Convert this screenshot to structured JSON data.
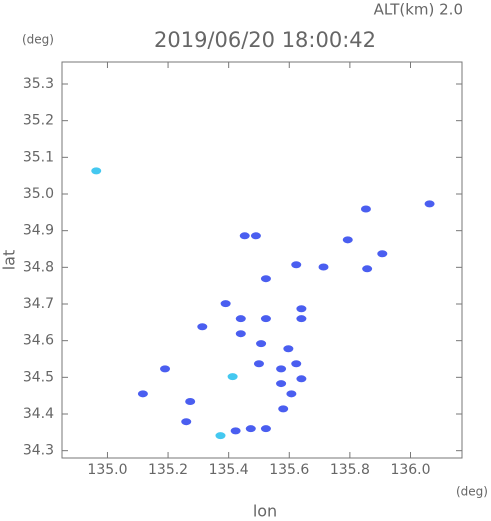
{
  "chart_data": {
    "type": "scatter",
    "title": "2019/06/20 18:00:42",
    "subtitle": "ALT(km) 2.0",
    "y_unit": "(deg)",
    "x_unit": "(deg)",
    "x_label": "lon",
    "y_label": "lat",
    "xlim": [
      134.85,
      136.17
    ],
    "ylim": [
      34.28,
      35.36
    ],
    "xticks": [
      {
        "value": 135.0,
        "label": "135.0"
      },
      135.2,
      135.4,
      135.6,
      135.8,
      {
        "value": 136.0,
        "label": "136.0"
      }
    ],
    "yticks": [
      {
        "value": 34.3,
        "label": "34.3"
      },
      34.4,
      34.5,
      34.6,
      34.7,
      34.8,
      34.9,
      {
        "value": 35.0,
        "label": "35.0"
      },
      35.1,
      35.2,
      35.3
    ],
    "series": [
      {
        "color": "#4a5ef0",
        "x": [
          135.49,
          135.453,
          135.793,
          135.853,
          135.623,
          135.713,
          135.857,
          135.907,
          136.063,
          135.39,
          135.523,
          135.44,
          135.523,
          135.64,
          135.64,
          135.597,
          135.623,
          135.573,
          135.573,
          135.64,
          135.607,
          135.507,
          135.313,
          135.19,
          135.117,
          135.273,
          135.26,
          135.423,
          135.473,
          135.523,
          135.58,
          135.5,
          135.44
        ],
        "values": [
          34.886,
          34.886,
          34.875,
          34.959,
          34.807,
          34.801,
          34.796,
          34.837,
          34.973,
          34.701,
          34.769,
          34.66,
          34.66,
          34.66,
          34.687,
          34.578,
          34.537,
          34.523,
          34.483,
          34.496,
          34.455,
          34.592,
          34.638,
          34.523,
          34.455,
          34.434,
          34.379,
          34.354,
          34.36,
          34.36,
          34.414,
          34.537,
          34.619
        ]
      },
      {
        "color": "#44c8f0",
        "x": [
          134.963,
          135.413,
          135.373
        ],
        "values": [
          35.063,
          34.502,
          34.341
        ]
      }
    ]
  }
}
